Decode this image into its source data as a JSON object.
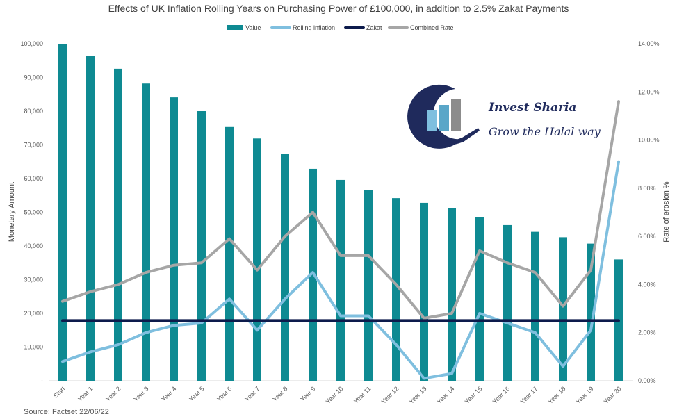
{
  "chart_data": {
    "type": "bar",
    "title": "Effects of UK Inflation Rolling Years on Purchasing Power of £100,000, in addition to 2.5% Zakat Payments",
    "categories": [
      "Start",
      "Year 1",
      "Year 2",
      "Year 3",
      "Year 4",
      "Year 5",
      "Year 6",
      "Year 7",
      "Year 8",
      "Year 9",
      "Year 10",
      "Year 11",
      "Year 12",
      "Year 13",
      "Year 14",
      "Year 15",
      "Year 16",
      "Year 17",
      "Year 18",
      "Year 19",
      "Year 20"
    ],
    "ylabel": "Monetary Amount",
    "y2label": "Rate of erosion  %",
    "ylim": [
      0,
      100000
    ],
    "y2lim": [
      0,
      14
    ],
    "y_ticks": [
      "-",
      "10,000",
      "20,000",
      "30,000",
      "40,000",
      "50,000",
      "60,000",
      "70,000",
      "80,000",
      "90,000",
      "100,000"
    ],
    "y2_ticks": [
      "0.00%",
      "2.00%",
      "4.00%",
      "6.00%",
      "8.00%",
      "10.00%",
      "12.00%",
      "14.00%"
    ],
    "legend_position": "top",
    "grid": false,
    "series": [
      {
        "name": "Value",
        "kind": "bar",
        "axis": "left",
        "color": "#0e8a92",
        "values": [
          100000,
          96300,
          92600,
          88200,
          84100,
          80000,
          75300,
          71900,
          67400,
          62900,
          59600,
          56500,
          54200,
          52800,
          51300,
          48500,
          46200,
          44200,
          42600,
          40700,
          36000
        ]
      },
      {
        "name": "Rolling inflation",
        "kind": "line",
        "axis": "right",
        "color": "#7fbfdf",
        "values": [
          0.8,
          1.2,
          1.5,
          2.0,
          2.3,
          2.4,
          3.4,
          2.1,
          3.4,
          4.5,
          2.7,
          2.7,
          1.5,
          0.1,
          0.3,
          2.8,
          2.4,
          2.0,
          0.6,
          2.1,
          9.1
        ]
      },
      {
        "name": "Zakat",
        "kind": "line",
        "axis": "right",
        "color": "#0d1b4c",
        "values": [
          2.5,
          2.5,
          2.5,
          2.5,
          2.5,
          2.5,
          2.5,
          2.5,
          2.5,
          2.5,
          2.5,
          2.5,
          2.5,
          2.5,
          2.5,
          2.5,
          2.5,
          2.5,
          2.5,
          2.5,
          2.5
        ]
      },
      {
        "name": "Combined Rate",
        "kind": "line",
        "axis": "right",
        "color": "#a6a6a6",
        "values": [
          3.3,
          3.7,
          4.0,
          4.5,
          4.8,
          4.9,
          5.9,
          4.6,
          6.0,
          7.0,
          5.2,
          5.2,
          4.0,
          2.6,
          2.8,
          5.4,
          4.9,
          4.5,
          3.1,
          4.6,
          11.6
        ]
      }
    ]
  },
  "logo": {
    "brand_name": "Invest Sharia",
    "tagline": "Grow the Halal way",
    "colors": {
      "navy": "#1f2a5c",
      "light_blue": "#7fbfdf",
      "mid_blue": "#5aa6c8",
      "gray": "#8c8c8c"
    }
  },
  "source": "Source: Factset 22/06/22"
}
